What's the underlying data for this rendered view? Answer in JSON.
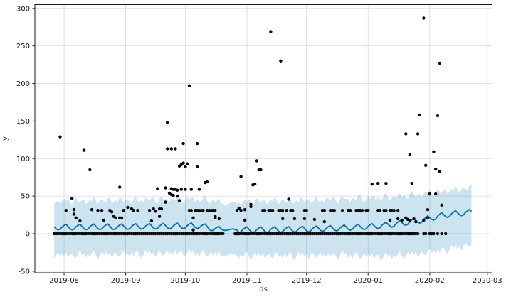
{
  "figure": {
    "xlabel": "ds",
    "ylabel": "y",
    "background": "#ffffff",
    "grid_color": "#d9d9d9",
    "frame_color": "#1a1a1a",
    "point_color": "#0a0a0a",
    "line_color": "#0072B2",
    "band_color": "rgba(0,114,178,0.2)",
    "x_ticks": [
      {
        "label": "2019-08",
        "day": 0
      },
      {
        "label": "2019-09",
        "day": 31
      },
      {
        "label": "2019-10",
        "day": 61
      },
      {
        "label": "2019-11",
        "day": 92
      },
      {
        "label": "2019-12",
        "day": 122
      },
      {
        "label": "2020-01",
        "day": 153
      },
      {
        "label": "2020-02",
        "day": 184
      },
      {
        "label": "2020-03",
        "day": 213
      }
    ],
    "y_ticks": [
      -50,
      0,
      50,
      100,
      150,
      200,
      250,
      300
    ],
    "xlim_days": [
      -14.7,
      215.4
    ],
    "ylim": [
      -52,
      305
    ]
  },
  "chart_data": {
    "type": "scatter",
    "title": "",
    "xlabel": "ds",
    "ylabel": "y",
    "x_epoch": "2019-08-01",
    "x_unit": "days since 2019-08-01",
    "xlim": [
      "2019-07-17",
      "2020-03-02"
    ],
    "ylim": [
      -52,
      305
    ],
    "grid": true,
    "points": [
      [
        -2,
        129
      ],
      [
        1,
        31
      ],
      [
        4,
        47
      ],
      [
        5,
        32
      ],
      [
        5,
        26
      ],
      [
        6,
        21
      ],
      [
        8,
        17
      ],
      [
        10,
        111
      ],
      [
        13,
        85
      ],
      [
        14,
        32
      ],
      [
        17,
        31
      ],
      [
        19,
        31
      ],
      [
        20,
        18
      ],
      [
        23,
        31
      ],
      [
        24,
        29
      ],
      [
        25,
        23
      ],
      [
        26,
        21
      ],
      [
        28,
        62
      ],
      [
        28,
        21
      ],
      [
        29,
        21
      ],
      [
        30,
        31
      ],
      [
        32,
        35
      ],
      [
        34,
        33
      ],
      [
        35,
        31
      ],
      [
        37,
        31
      ],
      [
        43,
        31
      ],
      [
        44,
        17
      ],
      [
        45,
        33
      ],
      [
        46,
        30
      ],
      [
        47,
        60
      ],
      [
        48,
        33
      ],
      [
        48,
        23
      ],
      [
        49,
        33
      ],
      [
        51,
        61
      ],
      [
        51,
        42
      ],
      [
        52,
        148
      ],
      [
        52,
        113
      ],
      [
        53,
        54
      ],
      [
        54,
        113
      ],
      [
        54,
        60
      ],
      [
        54,
        52
      ],
      [
        55,
        59
      ],
      [
        55,
        51
      ],
      [
        56,
        113
      ],
      [
        56,
        59
      ],
      [
        57,
        58
      ],
      [
        57,
        50
      ],
      [
        58,
        90
      ],
      [
        58,
        44
      ],
      [
        59,
        92
      ],
      [
        59,
        59
      ],
      [
        60,
        120
      ],
      [
        60,
        94
      ],
      [
        61,
        89
      ],
      [
        61,
        59
      ],
      [
        62,
        93
      ],
      [
        63,
        197
      ],
      [
        63,
        31
      ],
      [
        64,
        59
      ],
      [
        64,
        31
      ],
      [
        65,
        21
      ],
      [
        65,
        5
      ],
      [
        66,
        31
      ],
      [
        67,
        120
      ],
      [
        67,
        89
      ],
      [
        67,
        31
      ],
      [
        68,
        59
      ],
      [
        68,
        31
      ],
      [
        69,
        31
      ],
      [
        70,
        31
      ],
      [
        71,
        68
      ],
      [
        72,
        69
      ],
      [
        72,
        31
      ],
      [
        73,
        31
      ],
      [
        74,
        31
      ],
      [
        75,
        31
      ],
      [
        76,
        31
      ],
      [
        76,
        23
      ],
      [
        76,
        21
      ],
      [
        78,
        20
      ],
      [
        87,
        31
      ],
      [
        88,
        34
      ],
      [
        89,
        76
      ],
      [
        89,
        31
      ],
      [
        91,
        32
      ],
      [
        91,
        18
      ],
      [
        94,
        39
      ],
      [
        94,
        36
      ],
      [
        95,
        65
      ],
      [
        96,
        66
      ],
      [
        97,
        97
      ],
      [
        98,
        85
      ],
      [
        99,
        85
      ],
      [
        100,
        31
      ],
      [
        101,
        31
      ],
      [
        103,
        31
      ],
      [
        104,
        269
      ],
      [
        104,
        31
      ],
      [
        105,
        31
      ],
      [
        108,
        31
      ],
      [
        109,
        230
      ],
      [
        109,
        31
      ],
      [
        110,
        31
      ],
      [
        110,
        20
      ],
      [
        112,
        31
      ],
      [
        113,
        46
      ],
      [
        114,
        31
      ],
      [
        115,
        31
      ],
      [
        116,
        20
      ],
      [
        121,
        31
      ],
      [
        121,
        20
      ],
      [
        122,
        31
      ],
      [
        126,
        19
      ],
      [
        130,
        31
      ],
      [
        131,
        31
      ],
      [
        131,
        16
      ],
      [
        134,
        31
      ],
      [
        135,
        31
      ],
      [
        136,
        31
      ],
      [
        140,
        31
      ],
      [
        143,
        31
      ],
      [
        144,
        31
      ],
      [
        147,
        31
      ],
      [
        148,
        31
      ],
      [
        149,
        31
      ],
      [
        150,
        31
      ],
      [
        152,
        31
      ],
      [
        153,
        31
      ],
      [
        155,
        66
      ],
      [
        158,
        67
      ],
      [
        158,
        31
      ],
      [
        159,
        31
      ],
      [
        161,
        31
      ],
      [
        162,
        67
      ],
      [
        162,
        31
      ],
      [
        164,
        31
      ],
      [
        164,
        18
      ],
      [
        165,
        31
      ],
      [
        166,
        31
      ],
      [
        168,
        31
      ],
      [
        168,
        20
      ],
      [
        170,
        18
      ],
      [
        172,
        133
      ],
      [
        172,
        21
      ],
      [
        173,
        19
      ],
      [
        174,
        105
      ],
      [
        174,
        17
      ],
      [
        175,
        67
      ],
      [
        176,
        20
      ],
      [
        177,
        16
      ],
      [
        178,
        133
      ],
      [
        179,
        158
      ],
      [
        181,
        287
      ],
      [
        181,
        18
      ],
      [
        182,
        91
      ],
      [
        183,
        32
      ],
      [
        183,
        21
      ],
      [
        184,
        53
      ],
      [
        186,
        109
      ],
      [
        187,
        86
      ],
      [
        187,
        53
      ],
      [
        188,
        157
      ],
      [
        189,
        227
      ],
      [
        189,
        83
      ],
      [
        190,
        38
      ]
    ],
    "zero_value_runs_days": [
      [
        -5,
        80
      ],
      [
        86,
        178
      ]
    ],
    "zero_value_sparse_days": [
      181,
      182,
      184,
      185,
      186,
      188,
      190,
      192
    ],
    "forecast_range_days": [
      -5,
      205
    ],
    "history_gap_days": [
      80,
      87
    ],
    "forecast_line": {
      "trend": [
        [
          -5,
          8.5
        ],
        [
          25,
          9
        ],
        [
          55,
          10
        ],
        [
          68,
          10.5
        ],
        [
          78,
          5.5
        ],
        [
          95,
          5
        ],
        [
          115,
          5.5
        ],
        [
          135,
          7
        ],
        [
          155,
          9.5
        ],
        [
          168,
          13
        ],
        [
          180,
          18
        ],
        [
          190,
          24
        ],
        [
          198,
          27
        ],
        [
          205,
          28.5
        ]
      ],
      "weekly": [
        2.5,
        4,
        1,
        -2,
        -3.5,
        -2.5,
        0.5
      ]
    },
    "uncertainty_band": {
      "upper_trend": [
        [
          -5,
          43
        ],
        [
          30,
          44
        ],
        [
          60,
          46
        ],
        [
          75,
          44
        ],
        [
          82,
          40
        ],
        [
          95,
          43
        ],
        [
          120,
          44
        ],
        [
          145,
          46
        ],
        [
          160,
          48
        ],
        [
          175,
          51
        ],
        [
          190,
          56
        ],
        [
          200,
          59
        ],
        [
          205,
          61
        ]
      ],
      "upper_jitter": [
        2,
        -2,
        3,
        0,
        -3,
        2,
        4,
        -1,
        -4,
        1,
        3,
        -2,
        0
      ],
      "lower_trend": [
        [
          -5,
          -28
        ],
        [
          30,
          -27
        ],
        [
          60,
          -25
        ],
        [
          82,
          -28
        ],
        [
          110,
          -29
        ],
        [
          140,
          -28
        ],
        [
          160,
          -30
        ],
        [
          180,
          -26
        ],
        [
          192,
          -21
        ],
        [
          200,
          -17
        ],
        [
          205,
          -14
        ]
      ],
      "lower_jitter": [
        -3,
        2,
        -4,
        1,
        3,
        -2,
        -5,
        0,
        4,
        -1,
        2
      ]
    }
  }
}
